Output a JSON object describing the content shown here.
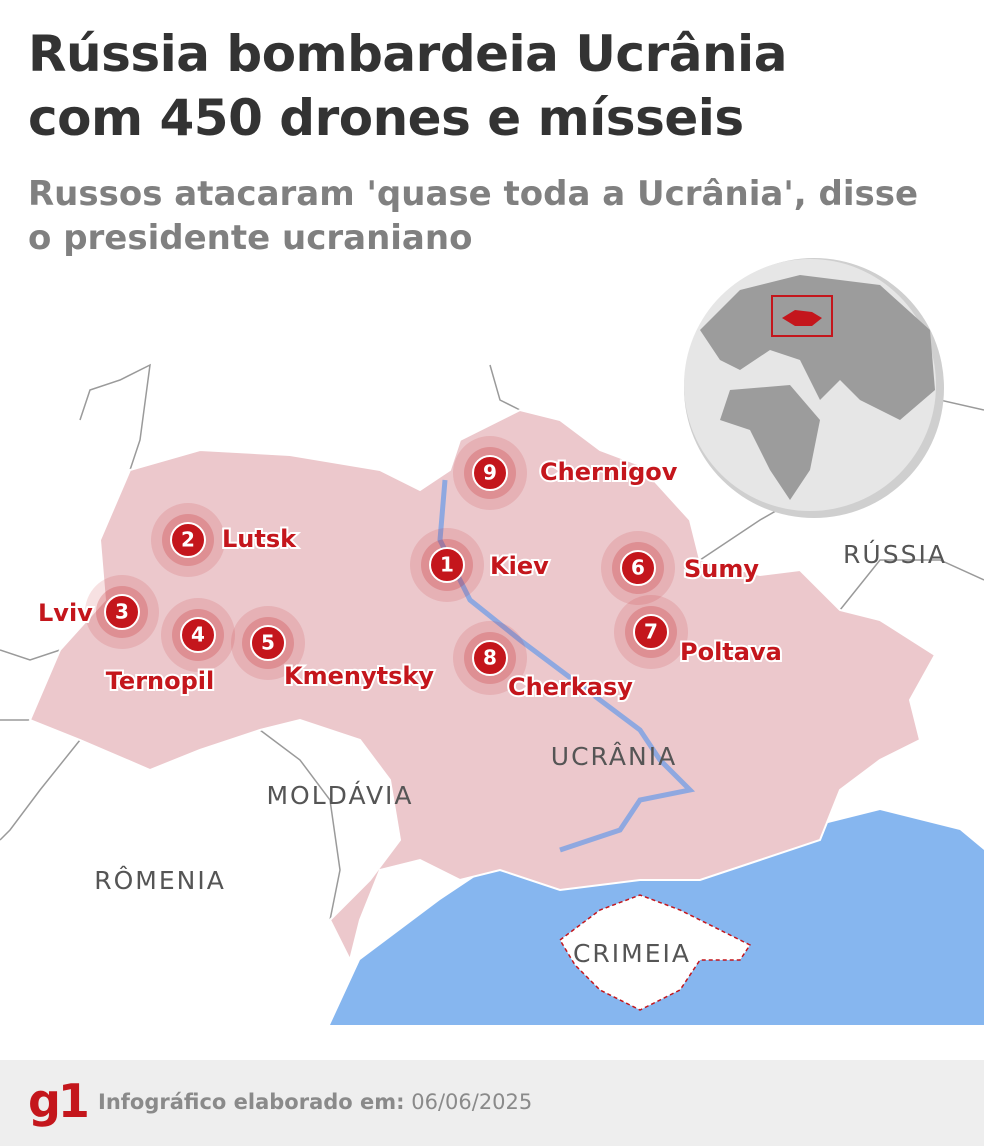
{
  "header": {
    "title": "Rússia bombardeia Ucrânia com 450 drones e mísseis",
    "subtitle": "Russos atacaram 'quase toda a Ucrânia', disse o presidente ucraniano"
  },
  "map": {
    "regions": [
      "RÚSSIA",
      "UCRÂNIA",
      "MOLDÁVIA",
      "RÔMENIA",
      "CRIMEIA"
    ],
    "cities": [
      {
        "number": 1,
        "name": "Kiev"
      },
      {
        "number": 2,
        "name": "Lutsk"
      },
      {
        "number": 3,
        "name": "Lviv"
      },
      {
        "number": 4,
        "name": "Ternopil"
      },
      {
        "number": 5,
        "name": "Kmenytsky"
      },
      {
        "number": 6,
        "name": "Sumy"
      },
      {
        "number": 7,
        "name": "Poltava"
      },
      {
        "number": 8,
        "name": "Cherkasy"
      },
      {
        "number": 9,
        "name": "Chernigov"
      }
    ]
  },
  "footer": {
    "logo": "g1",
    "label": "Infográfico elaborado em:",
    "date": "06/06/2025"
  }
}
